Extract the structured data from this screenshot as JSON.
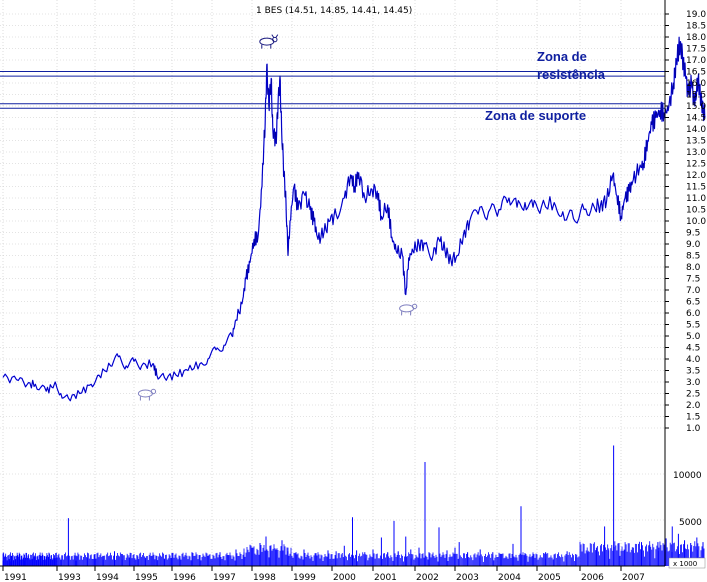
{
  "chart_data": {
    "type": "line",
    "title": "1 BES (14.51, 14.85, 14.41, 14.45)",
    "x_labels": [
      "1991",
      "1993",
      "1994",
      "1995",
      "1996",
      "1997",
      "1998",
      "1999",
      "2000",
      "2001",
      "2002",
      "2003",
      "2004",
      "2005",
      "2006",
      "2007"
    ],
    "price_axis": {
      "ylim": [
        0.6,
        19.4
      ],
      "ticks": [
        "1.0",
        "1.5",
        "2.0",
        "2.5",
        "3.0",
        "3.5",
        "4.0",
        "4.5",
        "5.0",
        "5.5",
        "6.0",
        "6.5",
        "7.0",
        "7.5",
        "8.0",
        "8.5",
        "9.0",
        "9.5",
        "10.0",
        "10.5",
        "11.0",
        "11.5",
        "12.0",
        "12.5",
        "13.0",
        "13.5",
        "14.0",
        "14.5",
        "15.0",
        "15.5",
        "16.0",
        "16.5",
        "17.0",
        "17.5",
        "18.0",
        "18.5",
        "19.0"
      ]
    },
    "volume_axis": {
      "ticks": [
        "10000",
        "5000"
      ],
      "unit_label": "x 1000"
    },
    "grid": true,
    "series": [
      {
        "color": "#0000ff",
        "points": [
          [
            1991.0,
            3.2
          ],
          [
            1991.5,
            3.1
          ],
          [
            1991.9,
            2.9
          ],
          [
            1992.2,
            2.9
          ],
          [
            1992.6,
            2.6
          ],
          [
            1992.9,
            2.9
          ],
          [
            1993.1,
            2.5
          ],
          [
            1993.3,
            2.3
          ],
          [
            1993.6,
            2.5
          ],
          [
            1993.9,
            2.9
          ],
          [
            1994.1,
            3.3
          ],
          [
            1994.4,
            3.7
          ],
          [
            1994.6,
            4.1
          ],
          [
            1994.8,
            3.7
          ],
          [
            1995.0,
            3.9
          ],
          [
            1995.2,
            3.7
          ],
          [
            1995.5,
            3.8
          ],
          [
            1995.6,
            3.3
          ],
          [
            1995.8,
            3.2
          ],
          [
            1996.1,
            3.3
          ],
          [
            1996.4,
            3.5
          ],
          [
            1996.7,
            3.8
          ],
          [
            1996.9,
            4.0
          ],
          [
            1997.1,
            4.4
          ],
          [
            1997.3,
            4.6
          ],
          [
            1997.5,
            5.0
          ],
          [
            1997.6,
            5.7
          ],
          [
            1997.75,
            6.4
          ],
          [
            1997.85,
            7.5
          ],
          [
            1997.95,
            8.2
          ],
          [
            1998.05,
            9.2
          ],
          [
            1998.15,
            9.3
          ],
          [
            1998.25,
            11.5
          ],
          [
            1998.3,
            13.5
          ],
          [
            1998.33,
            14.3
          ],
          [
            1998.37,
            16.8
          ],
          [
            1998.42,
            15.0
          ],
          [
            1998.48,
            16.2
          ],
          [
            1998.52,
            14.0
          ],
          [
            1998.6,
            13.5
          ],
          [
            1998.65,
            15.0
          ],
          [
            1998.7,
            16.3
          ],
          [
            1998.74,
            14.0
          ],
          [
            1998.8,
            12.0
          ],
          [
            1998.85,
            10.8
          ],
          [
            1998.9,
            8.5
          ],
          [
            1998.95,
            10.0
          ],
          [
            1999.05,
            11.5
          ],
          [
            1999.15,
            10.5
          ],
          [
            1999.3,
            11.2
          ],
          [
            1999.45,
            10.5
          ],
          [
            1999.55,
            10.0
          ],
          [
            1999.65,
            9.2
          ],
          [
            1999.8,
            9.5
          ],
          [
            1999.95,
            10.0
          ],
          [
            2000.1,
            10.3
          ],
          [
            2000.3,
            11.0
          ],
          [
            2000.45,
            12.0
          ],
          [
            2000.55,
            11.5
          ],
          [
            2000.65,
            12.1
          ],
          [
            2000.8,
            11.0
          ],
          [
            2000.95,
            11.4
          ],
          [
            2001.1,
            11.3
          ],
          [
            2001.2,
            10.2
          ],
          [
            2001.35,
            10.7
          ],
          [
            2001.45,
            9.3
          ],
          [
            2001.55,
            8.7
          ],
          [
            2001.7,
            8.5
          ],
          [
            2001.78,
            6.8
          ],
          [
            2001.85,
            8.4
          ],
          [
            2001.95,
            8.7
          ],
          [
            2002.1,
            9.0
          ],
          [
            2002.25,
            9.0
          ],
          [
            2002.45,
            8.5
          ],
          [
            2002.6,
            9.2
          ],
          [
            2002.75,
            8.7
          ],
          [
            2002.9,
            8.3
          ],
          [
            2003.05,
            8.5
          ],
          [
            2003.2,
            9.4
          ],
          [
            2003.35,
            10.0
          ],
          [
            2003.55,
            10.3
          ],
          [
            2003.8,
            10.4
          ],
          [
            2004.05,
            10.5
          ],
          [
            2004.3,
            11.0
          ],
          [
            2004.5,
            10.6
          ],
          [
            2004.7,
            10.8
          ],
          [
            2004.9,
            10.6
          ],
          [
            2005.1,
            10.6
          ],
          [
            2005.4,
            10.8
          ],
          [
            2005.6,
            10.4
          ],
          [
            2005.85,
            10.1
          ],
          [
            2006.1,
            10.5
          ],
          [
            2006.35,
            10.6
          ],
          [
            2006.5,
            10.7
          ],
          [
            2006.65,
            10.9
          ],
          [
            2006.8,
            12.0
          ],
          [
            2006.9,
            11.1
          ],
          [
            2007.0,
            10.2
          ],
          [
            2007.1,
            11.0
          ],
          [
            2007.2,
            11.3
          ],
          [
            2007.3,
            11.8
          ],
          [
            2007.45,
            12.3
          ],
          [
            2007.55,
            12.5
          ],
          [
            2007.65,
            13.5
          ],
          [
            2007.75,
            14.2
          ],
          [
            2007.85,
            14.5
          ],
          [
            2007.95,
            14.8
          ],
          [
            2008.05,
            14.7
          ],
          [
            2008.15,
            14.8
          ],
          [
            2008.28,
            16.0
          ],
          [
            2008.35,
            17.0
          ],
          [
            2008.45,
            17.8
          ],
          [
            2008.52,
            16.9
          ],
          [
            2008.58,
            16.2
          ],
          [
            2008.65,
            15.5
          ],
          [
            2008.72,
            16.0
          ],
          [
            2008.8,
            15.0
          ],
          [
            2008.88,
            16.2
          ],
          [
            2008.95,
            15.2
          ],
          [
            2009.0,
            14.9
          ],
          [
            2009.05,
            14.5
          ]
        ]
      }
    ],
    "volume_series": {
      "color": "#0000ff",
      "points": [
        [
          1991.0,
          600
        ],
        [
          1991.3,
          500
        ],
        [
          1991.6,
          700
        ],
        [
          1991.8,
          600
        ],
        [
          1992.1,
          800
        ],
        [
          1992.4,
          500
        ],
        [
          1992.6,
          600
        ],
        [
          1992.9,
          1100
        ],
        [
          1993.1,
          700
        ],
        [
          1993.3,
          5200
        ],
        [
          1993.5,
          600
        ],
        [
          1993.8,
          900
        ],
        [
          1994.0,
          1300
        ],
        [
          1994.2,
          1100
        ],
        [
          1994.5,
          1600
        ],
        [
          1994.7,
          1300
        ],
        [
          1994.9,
          1200
        ],
        [
          1995.1,
          1000
        ],
        [
          1995.3,
          900
        ],
        [
          1995.6,
          1100
        ],
        [
          1995.8,
          800
        ],
        [
          1996.0,
          1400
        ],
        [
          1996.2,
          900
        ],
        [
          1996.5,
          1500
        ],
        [
          1996.7,
          1200
        ],
        [
          1996.9,
          1100
        ],
        [
          1997.2,
          1500
        ],
        [
          1997.4,
          1200
        ],
        [
          1997.6,
          1800
        ],
        [
          1997.8,
          1500
        ],
        [
          1998.0,
          2000
        ],
        [
          1998.2,
          2500
        ],
        [
          1998.35,
          3200
        ],
        [
          1998.45,
          2200
        ],
        [
          1998.6,
          1800
        ],
        [
          1998.75,
          2800
        ],
        [
          1998.9,
          1600
        ],
        [
          1999.1,
          1500
        ],
        [
          1999.3,
          1800
        ],
        [
          1999.6,
          1400
        ],
        [
          1999.9,
          1700
        ],
        [
          2000.1,
          1600
        ],
        [
          2000.3,
          2200
        ],
        [
          2000.5,
          5300
        ],
        [
          2000.6,
          1700
        ],
        [
          2000.8,
          1500
        ],
        [
          2001.0,
          1800
        ],
        [
          2001.2,
          3100
        ],
        [
          2001.35,
          1500
        ],
        [
          2001.5,
          4900
        ],
        [
          2001.6,
          1600
        ],
        [
          2001.78,
          3200
        ],
        [
          2001.9,
          1800
        ],
        [
          2002.1,
          2000
        ],
        [
          2002.25,
          11300
        ],
        [
          2002.35,
          1500
        ],
        [
          2002.6,
          4200
        ],
        [
          2002.8,
          1700
        ],
        [
          2003.0,
          2000
        ],
        [
          2003.1,
          2600
        ],
        [
          2003.3,
          1500
        ],
        [
          2003.6,
          1800
        ],
        [
          2003.9,
          1500
        ],
        [
          2004.1,
          1300
        ],
        [
          2004.4,
          2400
        ],
        [
          2004.6,
          6500
        ],
        [
          2004.7,
          1400
        ],
        [
          2004.9,
          1300
        ],
        [
          2005.2,
          1500
        ],
        [
          2005.4,
          1200
        ],
        [
          2005.7,
          1600
        ],
        [
          2005.9,
          1300
        ],
        [
          2006.2,
          1500
        ],
        [
          2006.4,
          2000
        ],
        [
          2006.6,
          4300
        ],
        [
          2006.7,
          1700
        ],
        [
          2006.82,
          13100
        ],
        [
          2006.95,
          2500
        ],
        [
          2007.1,
          1800
        ],
        [
          2007.3,
          2000
        ],
        [
          2007.5,
          2600
        ],
        [
          2007.7,
          2300
        ],
        [
          2007.9,
          2600
        ],
        [
          2008.1,
          3000
        ],
        [
          2008.25,
          4300
        ],
        [
          2008.4,
          3500
        ],
        [
          2008.55,
          2800
        ],
        [
          2008.7,
          2500
        ],
        [
          2008.85,
          3100
        ],
        [
          2009.0,
          2600
        ]
      ]
    },
    "horizontal_lines": [
      16.5,
      16.3,
      15.1,
      14.9
    ],
    "annotations": [
      {
        "line1": "Zona de",
        "line2": "resistência"
      },
      {
        "line1": "Zona de suporte"
      }
    ],
    "marker_icons": [
      "bull-icon",
      "bear-icon",
      "bear-icon"
    ]
  }
}
